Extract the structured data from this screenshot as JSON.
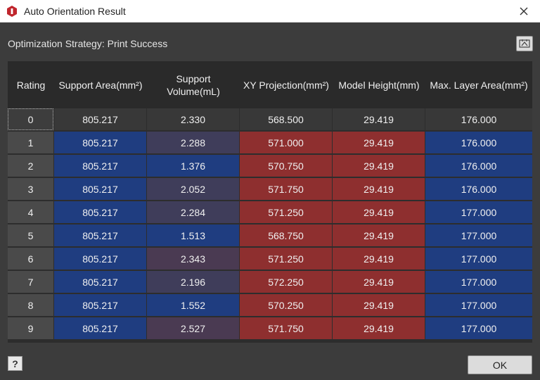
{
  "window": {
    "title": "Auto Orientation Result"
  },
  "strategy_label": "Optimization Strategy: Print Success",
  "table": {
    "headers": [
      "Rating",
      "Support Area(mm²)",
      "Support\nVolume(mL)",
      "XY Projection(mm²)",
      "Model Height(mm)",
      "Max. Layer Area(mm²)"
    ],
    "rows": [
      [
        "0",
        "805.217",
        "2.330",
        "568.500",
        "29.419",
        "176.000"
      ],
      [
        "1",
        "805.217",
        "2.288",
        "571.000",
        "29.419",
        "176.000"
      ],
      [
        "2",
        "805.217",
        "1.376",
        "570.750",
        "29.419",
        "176.000"
      ],
      [
        "3",
        "805.217",
        "2.052",
        "571.750",
        "29.419",
        "176.000"
      ],
      [
        "4",
        "805.217",
        "2.284",
        "571.250",
        "29.419",
        "177.000"
      ],
      [
        "5",
        "805.217",
        "1.513",
        "568.750",
        "29.419",
        "177.000"
      ],
      [
        "6",
        "805.217",
        "2.343",
        "571.250",
        "29.419",
        "177.000"
      ],
      [
        "7",
        "805.217",
        "2.196",
        "572.250",
        "29.419",
        "177.000"
      ],
      [
        "8",
        "805.217",
        "1.552",
        "570.250",
        "29.419",
        "177.000"
      ],
      [
        "9",
        "805.217",
        "2.527",
        "571.750",
        "29.419",
        "177.000"
      ]
    ]
  },
  "buttons": {
    "help_label": "?",
    "ok_label": "OK"
  },
  "colors": {
    "good": "#1f3d80",
    "bad": "#8e2f2f",
    "neutral": "#3f3d5a"
  }
}
